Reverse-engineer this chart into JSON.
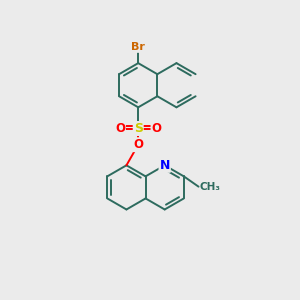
{
  "background_color": "#ebebeb",
  "bond_color": "#2d6b5e",
  "bond_width": 1.4,
  "atom_colors": {
    "Br": "#cc6600",
    "S": "#cccc00",
    "O": "#ff0000",
    "N": "#0000ff",
    "C": "#2d6b5e"
  },
  "figsize": [
    3.0,
    3.0
  ],
  "dpi": 100
}
